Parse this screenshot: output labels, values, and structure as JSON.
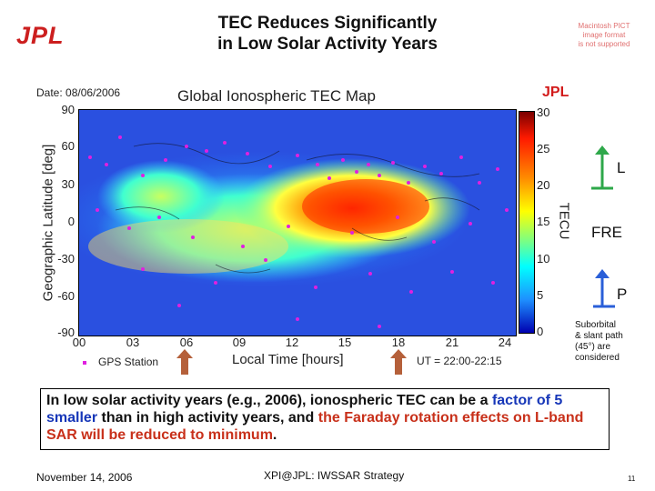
{
  "header": {
    "logo": "JPL",
    "title_line1": "TEC Reduces Significantly",
    "title_line2": "in Low Solar Activity Years",
    "pict_notice": [
      "Macintosh PICT",
      "image format",
      "is not supported"
    ]
  },
  "map": {
    "date": "Date: 08/06/2006",
    "title": "Global Ionospheric TEC Map",
    "corner_logo": "JPL",
    "y_axis_label": "Geographic Latitude [deg]",
    "x_axis_label": "Local Time [hours]",
    "y_ticks": [
      "90",
      "60",
      "30",
      "0",
      "-30",
      "-60",
      "-90"
    ],
    "x_ticks": [
      "00",
      "03",
      "06",
      "09",
      "12",
      "15",
      "18",
      "21",
      "24"
    ],
    "colorbar_label": "TECU",
    "colorbar_ticks": [
      "30",
      "25",
      "20",
      "15",
      "10",
      "5",
      "0"
    ],
    "legend_label": "GPS Station",
    "ut_range": "UT = 22:00-22:15",
    "colors": {
      "station": "#e020e0",
      "green_arrow": "#2ea84a",
      "blue_arrow": "#2a5fd8",
      "brown_arrow": "#b5603a"
    }
  },
  "side": {
    "label_l": "L",
    "label_fre": "FRE",
    "label_p": "P",
    "note_lines": [
      "Suborbital",
      "& slant path",
      "(45°) are",
      "considered"
    ]
  },
  "summary": {
    "part1": "In low solar activity years (e.g., 2006), ionospheric TEC can be a ",
    "part2": "factor of 5 smaller",
    "part3": " than in high activity years, and ",
    "part4": "the Faraday rotation effects on L-band SAR will be reduced to minimum",
    "part5": "."
  },
  "footer": {
    "date": "November 14, 2006",
    "center": "XPI@JPL: IWSSAR Strategy",
    "page": "11"
  }
}
